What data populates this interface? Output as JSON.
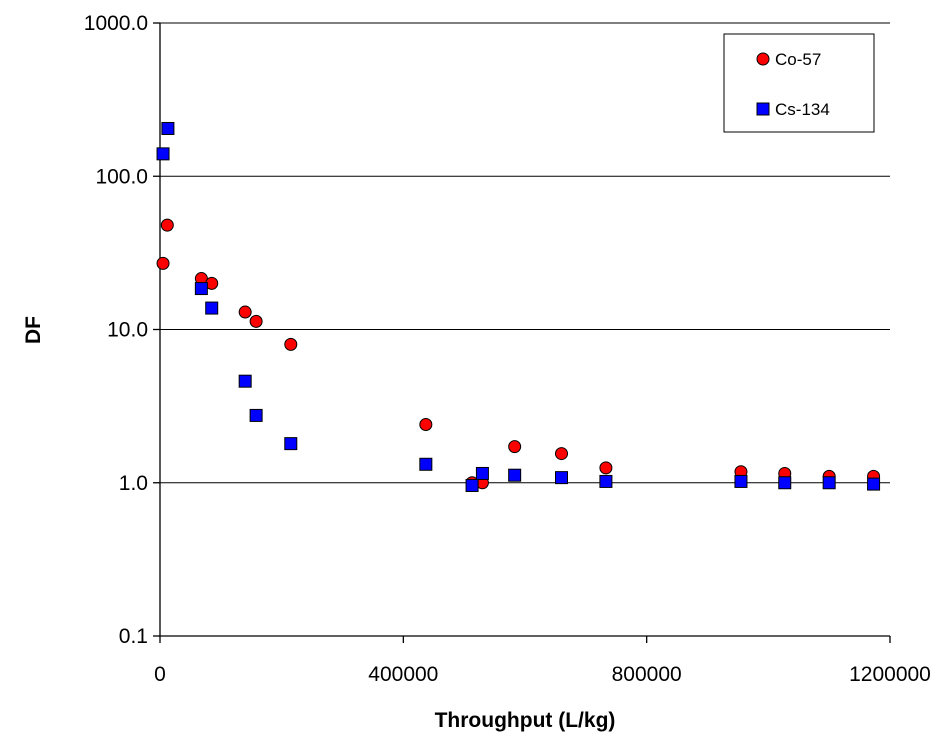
{
  "chart_data": {
    "type": "scatter",
    "title": "",
    "xlabel": "Throughput (L/kg)",
    "ylabel": "DF",
    "y_scale": "log",
    "xlim": [
      0,
      1200000
    ],
    "ylim": [
      0.1,
      1000.0
    ],
    "x_ticks": [
      "0",
      "400000",
      "800000",
      "1200000"
    ],
    "y_ticks": [
      "0.1",
      "1.0",
      "10.0",
      "100.0",
      "1000.0"
    ],
    "grid": "horizontal major gridlines",
    "legend_position": "top-right",
    "series": [
      {
        "name": "Co-57",
        "marker": "circle",
        "color": "#ff0000",
        "x": [
          5000,
          12000,
          68000,
          85000,
          140000,
          158000,
          215000,
          437000,
          513000,
          530000,
          583000,
          660000,
          733000,
          955000,
          1027000,
          1100000,
          1173000
        ],
        "y": [
          27,
          48,
          21.5,
          20,
          13,
          11.3,
          8,
          2.4,
          1.0,
          1.0,
          1.72,
          1.55,
          1.25,
          1.18,
          1.15,
          1.1,
          1.1
        ]
      },
      {
        "name": "Cs-134",
        "marker": "square",
        "color": "#0000ff",
        "x": [
          5000,
          13000,
          68000,
          85000,
          140000,
          158000,
          215000,
          437000,
          513000,
          530000,
          583000,
          660000,
          733000,
          955000,
          1027000,
          1100000,
          1173000
        ],
        "y": [
          140,
          205,
          18.5,
          13.8,
          4.6,
          2.75,
          1.8,
          1.32,
          0.96,
          1.15,
          1.12,
          1.08,
          1.02,
          1.02,
          1.0,
          1.0,
          0.98
        ]
      }
    ]
  }
}
